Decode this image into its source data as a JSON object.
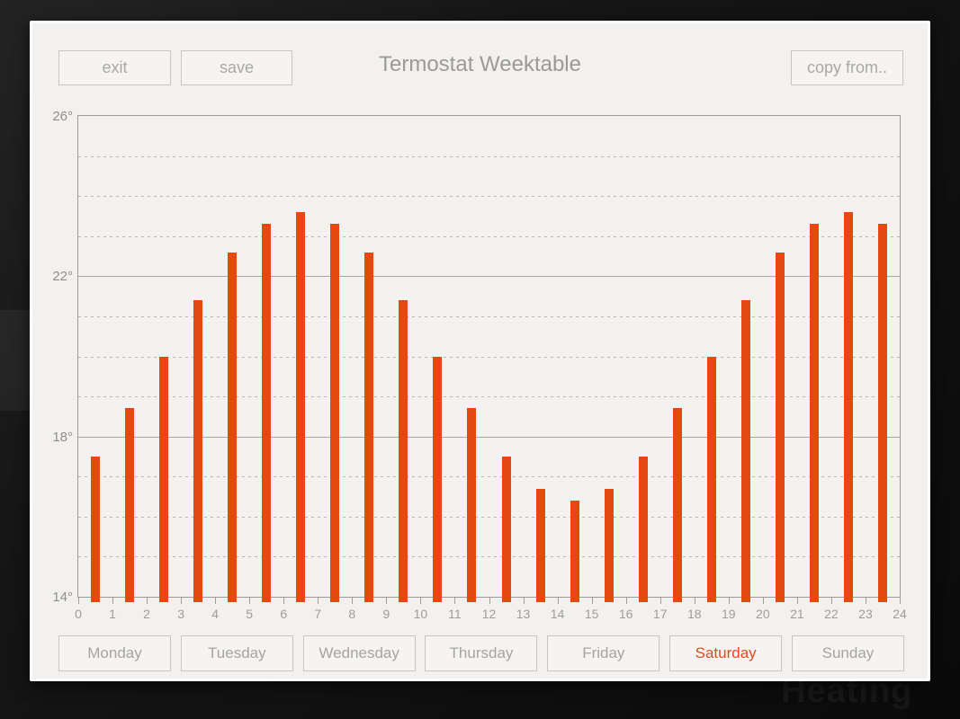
{
  "window": {
    "title": "Termostat Weektable",
    "buttons": {
      "exit": "exit",
      "save": "save",
      "copy_from": "copy from.."
    }
  },
  "background": {
    "faint_text": "Heating"
  },
  "colors": {
    "accent_bar": "#e5490f",
    "selected_day_text": "#e8491a",
    "window_bg": "#f2f1ef",
    "outer_bg": "#101010",
    "muted_text": "#9b9a98"
  },
  "chart_data": {
    "type": "bar",
    "title": "Termostat Weektable",
    "xlabel": "",
    "ylabel": "",
    "unit": "degrees",
    "xlim": [
      0,
      24
    ],
    "ylim": [
      14,
      26
    ],
    "hours": [
      0,
      1,
      2,
      3,
      4,
      5,
      6,
      7,
      8,
      9,
      10,
      11,
      12,
      13,
      14,
      15,
      16,
      17,
      18,
      19,
      20,
      21,
      22,
      23
    ],
    "values": [
      17.5,
      18.7,
      20.0,
      21.4,
      22.6,
      23.3,
      23.6,
      23.3,
      22.6,
      21.4,
      20.0,
      18.7,
      17.5,
      16.7,
      16.4,
      16.7,
      17.5,
      18.7,
      20.0,
      21.4,
      22.6,
      23.3,
      23.6,
      23.3
    ],
    "bar_color": "#e5490f",
    "x_tick_labels": [
      "0",
      "1",
      "2",
      "3",
      "4",
      "5",
      "6",
      "7",
      "8",
      "9",
      "10",
      "11",
      "12",
      "13",
      "14",
      "15",
      "16",
      "17",
      "18",
      "19",
      "20",
      "21",
      "22",
      "23",
      "24"
    ],
    "y_tick_labels": [
      {
        "value": 26,
        "label": "26°"
      },
      {
        "value": 22,
        "label": "22°"
      },
      {
        "value": 18,
        "label": "18°"
      },
      {
        "value": 14,
        "label": "14°"
      }
    ],
    "solid_gridlines": [
      22,
      18
    ],
    "dashed_gridlines": [
      25,
      24,
      23,
      21,
      20,
      19,
      17,
      16,
      15
    ],
    "legend": null
  },
  "day_tabs": [
    {
      "label": "Monday",
      "selected": false
    },
    {
      "label": "Tuesday",
      "selected": false
    },
    {
      "label": "Wednesday",
      "selected": false
    },
    {
      "label": "Thursday",
      "selected": false
    },
    {
      "label": "Friday",
      "selected": false
    },
    {
      "label": "Saturday",
      "selected": true
    },
    {
      "label": "Sunday",
      "selected": false
    }
  ]
}
